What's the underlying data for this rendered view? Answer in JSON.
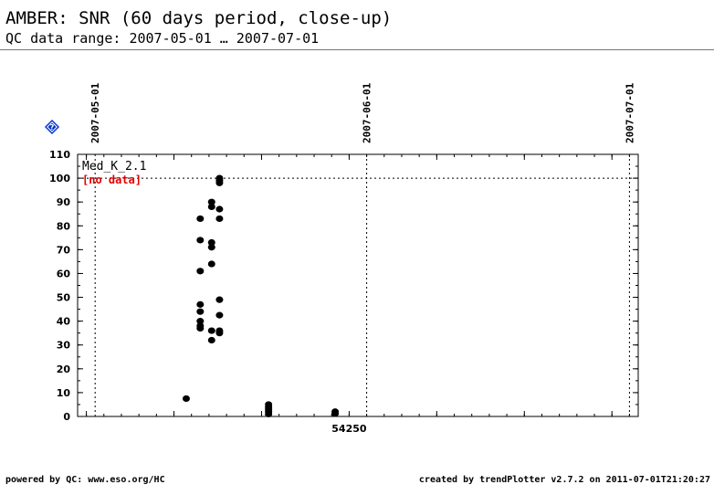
{
  "header": {
    "title": "AMBER: SNR (60 days period, close-up)",
    "subtitle": "QC data range: 2007-05-01 … 2007-07-01"
  },
  "help_icon": {
    "name": "help-icon",
    "color": "#0033cc"
  },
  "footer": {
    "left": "powered by QC: www.eso.org/HC",
    "right": "created by trendPlotter v2.7.2 on 2011-07-01T21:20:27"
  },
  "chart_data": {
    "type": "scatter",
    "x_unit": "MJD",
    "xlim": [
      54219,
      54283
    ],
    "ylim": [
      0,
      110
    ],
    "yticks": [
      0,
      10,
      20,
      30,
      40,
      50,
      60,
      70,
      80,
      90,
      100,
      110
    ],
    "xtick_labels": [
      {
        "x": 54250,
        "label": "54250"
      }
    ],
    "date_markers": [
      {
        "x": 54221,
        "label": "2007-05-01"
      },
      {
        "x": 54252,
        "label": "2007-06-01"
      },
      {
        "x": 54282,
        "label": "2007-07-01"
      }
    ],
    "reference_line": {
      "y": 100
    },
    "panel_label": "Med_K_2.1",
    "no_data_label": "[no data]",
    "no_data_color": "#e00000",
    "marker_color": "#000000",
    "points": [
      {
        "x": 54231.4,
        "y": 7.5
      },
      {
        "x": 54233.0,
        "y": 61
      },
      {
        "x": 54233.0,
        "y": 74
      },
      {
        "x": 54233.0,
        "y": 83
      },
      {
        "x": 54233.0,
        "y": 47
      },
      {
        "x": 54233.0,
        "y": 44
      },
      {
        "x": 54233.0,
        "y": 40
      },
      {
        "x": 54233.0,
        "y": 38
      },
      {
        "x": 54233.0,
        "y": 37
      },
      {
        "x": 54234.3,
        "y": 90
      },
      {
        "x": 54234.3,
        "y": 88
      },
      {
        "x": 54234.3,
        "y": 73
      },
      {
        "x": 54234.3,
        "y": 71
      },
      {
        "x": 54234.3,
        "y": 64
      },
      {
        "x": 54234.3,
        "y": 36
      },
      {
        "x": 54234.3,
        "y": 32
      },
      {
        "x": 54235.2,
        "y": 100
      },
      {
        "x": 54235.2,
        "y": 99
      },
      {
        "x": 54235.2,
        "y": 98
      },
      {
        "x": 54235.2,
        "y": 87
      },
      {
        "x": 54235.2,
        "y": 83
      },
      {
        "x": 54235.2,
        "y": 49
      },
      {
        "x": 54235.2,
        "y": 42.5
      },
      {
        "x": 54235.2,
        "y": 36
      },
      {
        "x": 54235.2,
        "y": 35
      },
      {
        "x": 54240.8,
        "y": 5
      },
      {
        "x": 54240.8,
        "y": 4
      },
      {
        "x": 54240.8,
        "y": 3
      },
      {
        "x": 54240.8,
        "y": 2
      },
      {
        "x": 54240.8,
        "y": 1
      },
      {
        "x": 54248.4,
        "y": 2
      },
      {
        "x": 54248.4,
        "y": 1.2
      }
    ]
  }
}
